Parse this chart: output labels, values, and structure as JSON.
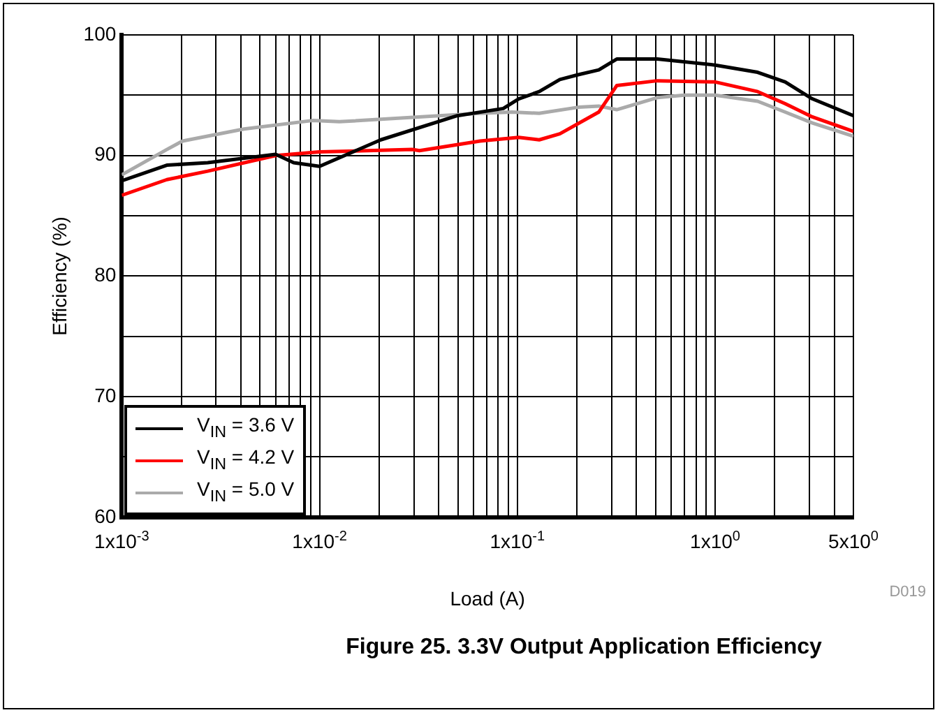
{
  "chart_data": {
    "type": "line",
    "title": "Figure 25. 3.3V Output Application Efficiency",
    "xlabel": "Load (A)",
    "ylabel": "Efficiency (%)",
    "log": "x",
    "xlim": [
      0.001,
      5
    ],
    "ylim": [
      60,
      100
    ],
    "xticks": [
      {
        "value": 0.001,
        "label": "1x10$^{-3}$"
      },
      {
        "value": 0.002,
        "label": null
      },
      {
        "value": 0.003,
        "label": null
      },
      {
        "value": 0.004,
        "label": null
      },
      {
        "value": 0.005,
        "label": null
      },
      {
        "value": 0.006,
        "label": null
      },
      {
        "value": 0.007,
        "label": null
      },
      {
        "value": 0.008,
        "label": null
      },
      {
        "value": 0.009,
        "label": null
      },
      {
        "value": 0.01,
        "label": "1x10$^{-2}$"
      },
      {
        "value": 0.02,
        "label": null
      },
      {
        "value": 0.03,
        "label": null
      },
      {
        "value": 0.04,
        "label": null
      },
      {
        "value": 0.05,
        "label": null
      },
      {
        "value": 0.06,
        "label": null
      },
      {
        "value": 0.07,
        "label": null
      },
      {
        "value": 0.08,
        "label": null
      },
      {
        "value": 0.09,
        "label": null
      },
      {
        "value": 0.1,
        "label": "1x10$^{-1}$"
      },
      {
        "value": 0.2,
        "label": null
      },
      {
        "value": 0.3,
        "label": null
      },
      {
        "value": 0.4,
        "label": null
      },
      {
        "value": 0.5,
        "label": null
      },
      {
        "value": 0.6,
        "label": null
      },
      {
        "value": 0.7,
        "label": null
      },
      {
        "value": 0.8,
        "label": null
      },
      {
        "value": 0.9,
        "label": null
      },
      {
        "value": 1,
        "label": "1x10$^{0}$"
      },
      {
        "value": 2,
        "label": null
      },
      {
        "value": 3,
        "label": null
      },
      {
        "value": 4,
        "label": null
      },
      {
        "value": 5,
        "label": "5x10$^{0}$"
      }
    ],
    "yticks": [
      60,
      {
        "value": 65,
        "label": null
      },
      70,
      {
        "value": 75,
        "label": null
      },
      80,
      {
        "value": 85,
        "label": null
      },
      90,
      {
        "value": 95,
        "label": null
      },
      100
    ],
    "grid": true,
    "legend": "bottom left",
    "marker": "none",
    "line_style": "solid",
    "annotations": [
      "D019"
    ],
    "series": [
      {
        "name": "V$_{IN}$ = 3.6 V",
        "color": "#000000",
        "x": [
          0.001,
          0.00169,
          0.00272,
          0.006,
          0.0074,
          0.01,
          0.0204,
          0.0497,
          0.0849,
          0.1016,
          0.129,
          0.164,
          0.203,
          0.258,
          0.318,
          0.51,
          1.0,
          1.64,
          2.26,
          3.1,
          5
        ],
        "values": [
          87.9,
          89.2,
          89.4,
          90.1,
          89.4,
          89.1,
          91.3,
          93.3,
          93.9,
          94.7,
          95.3,
          96.3,
          96.7,
          97.1,
          98.0,
          98.0,
          97.5,
          96.9,
          96.1,
          94.7,
          93.3
        ]
      },
      {
        "name": "V$_{IN}$ = 4.2 V",
        "color": "#ff0000",
        "x": [
          0.001,
          0.00169,
          0.00272,
          0.006,
          0.01,
          0.0294,
          0.032,
          0.0648,
          0.1016,
          0.129,
          0.164,
          0.258,
          0.318,
          0.51,
          1.0,
          1.64,
          2.26,
          3.1,
          5
        ],
        "values": [
          86.7,
          88.0,
          88.7,
          90.0,
          90.3,
          90.5,
          90.4,
          91.2,
          91.5,
          91.3,
          91.8,
          93.6,
          95.8,
          96.2,
          96.1,
          95.3,
          94.3,
          93.2,
          92.0
        ]
      },
      {
        "name": "V$_{IN}$ = 5.0 V",
        "color": "#aaaaaa",
        "x": [
          0.001,
          0.00169,
          0.00203,
          0.00415,
          0.0092,
          0.0126,
          0.0648,
          0.094,
          0.129,
          0.203,
          0.258,
          0.318,
          0.51,
          0.7,
          1.0,
          1.64,
          2.26,
          3.1,
          5
        ],
        "values": [
          88.4,
          90.5,
          91.2,
          92.2,
          92.9,
          92.8,
          93.5,
          93.6,
          93.5,
          94.0,
          94.1,
          93.8,
          94.8,
          95.0,
          95.0,
          94.5,
          93.6,
          92.7,
          91.6
        ]
      }
    ]
  }
}
